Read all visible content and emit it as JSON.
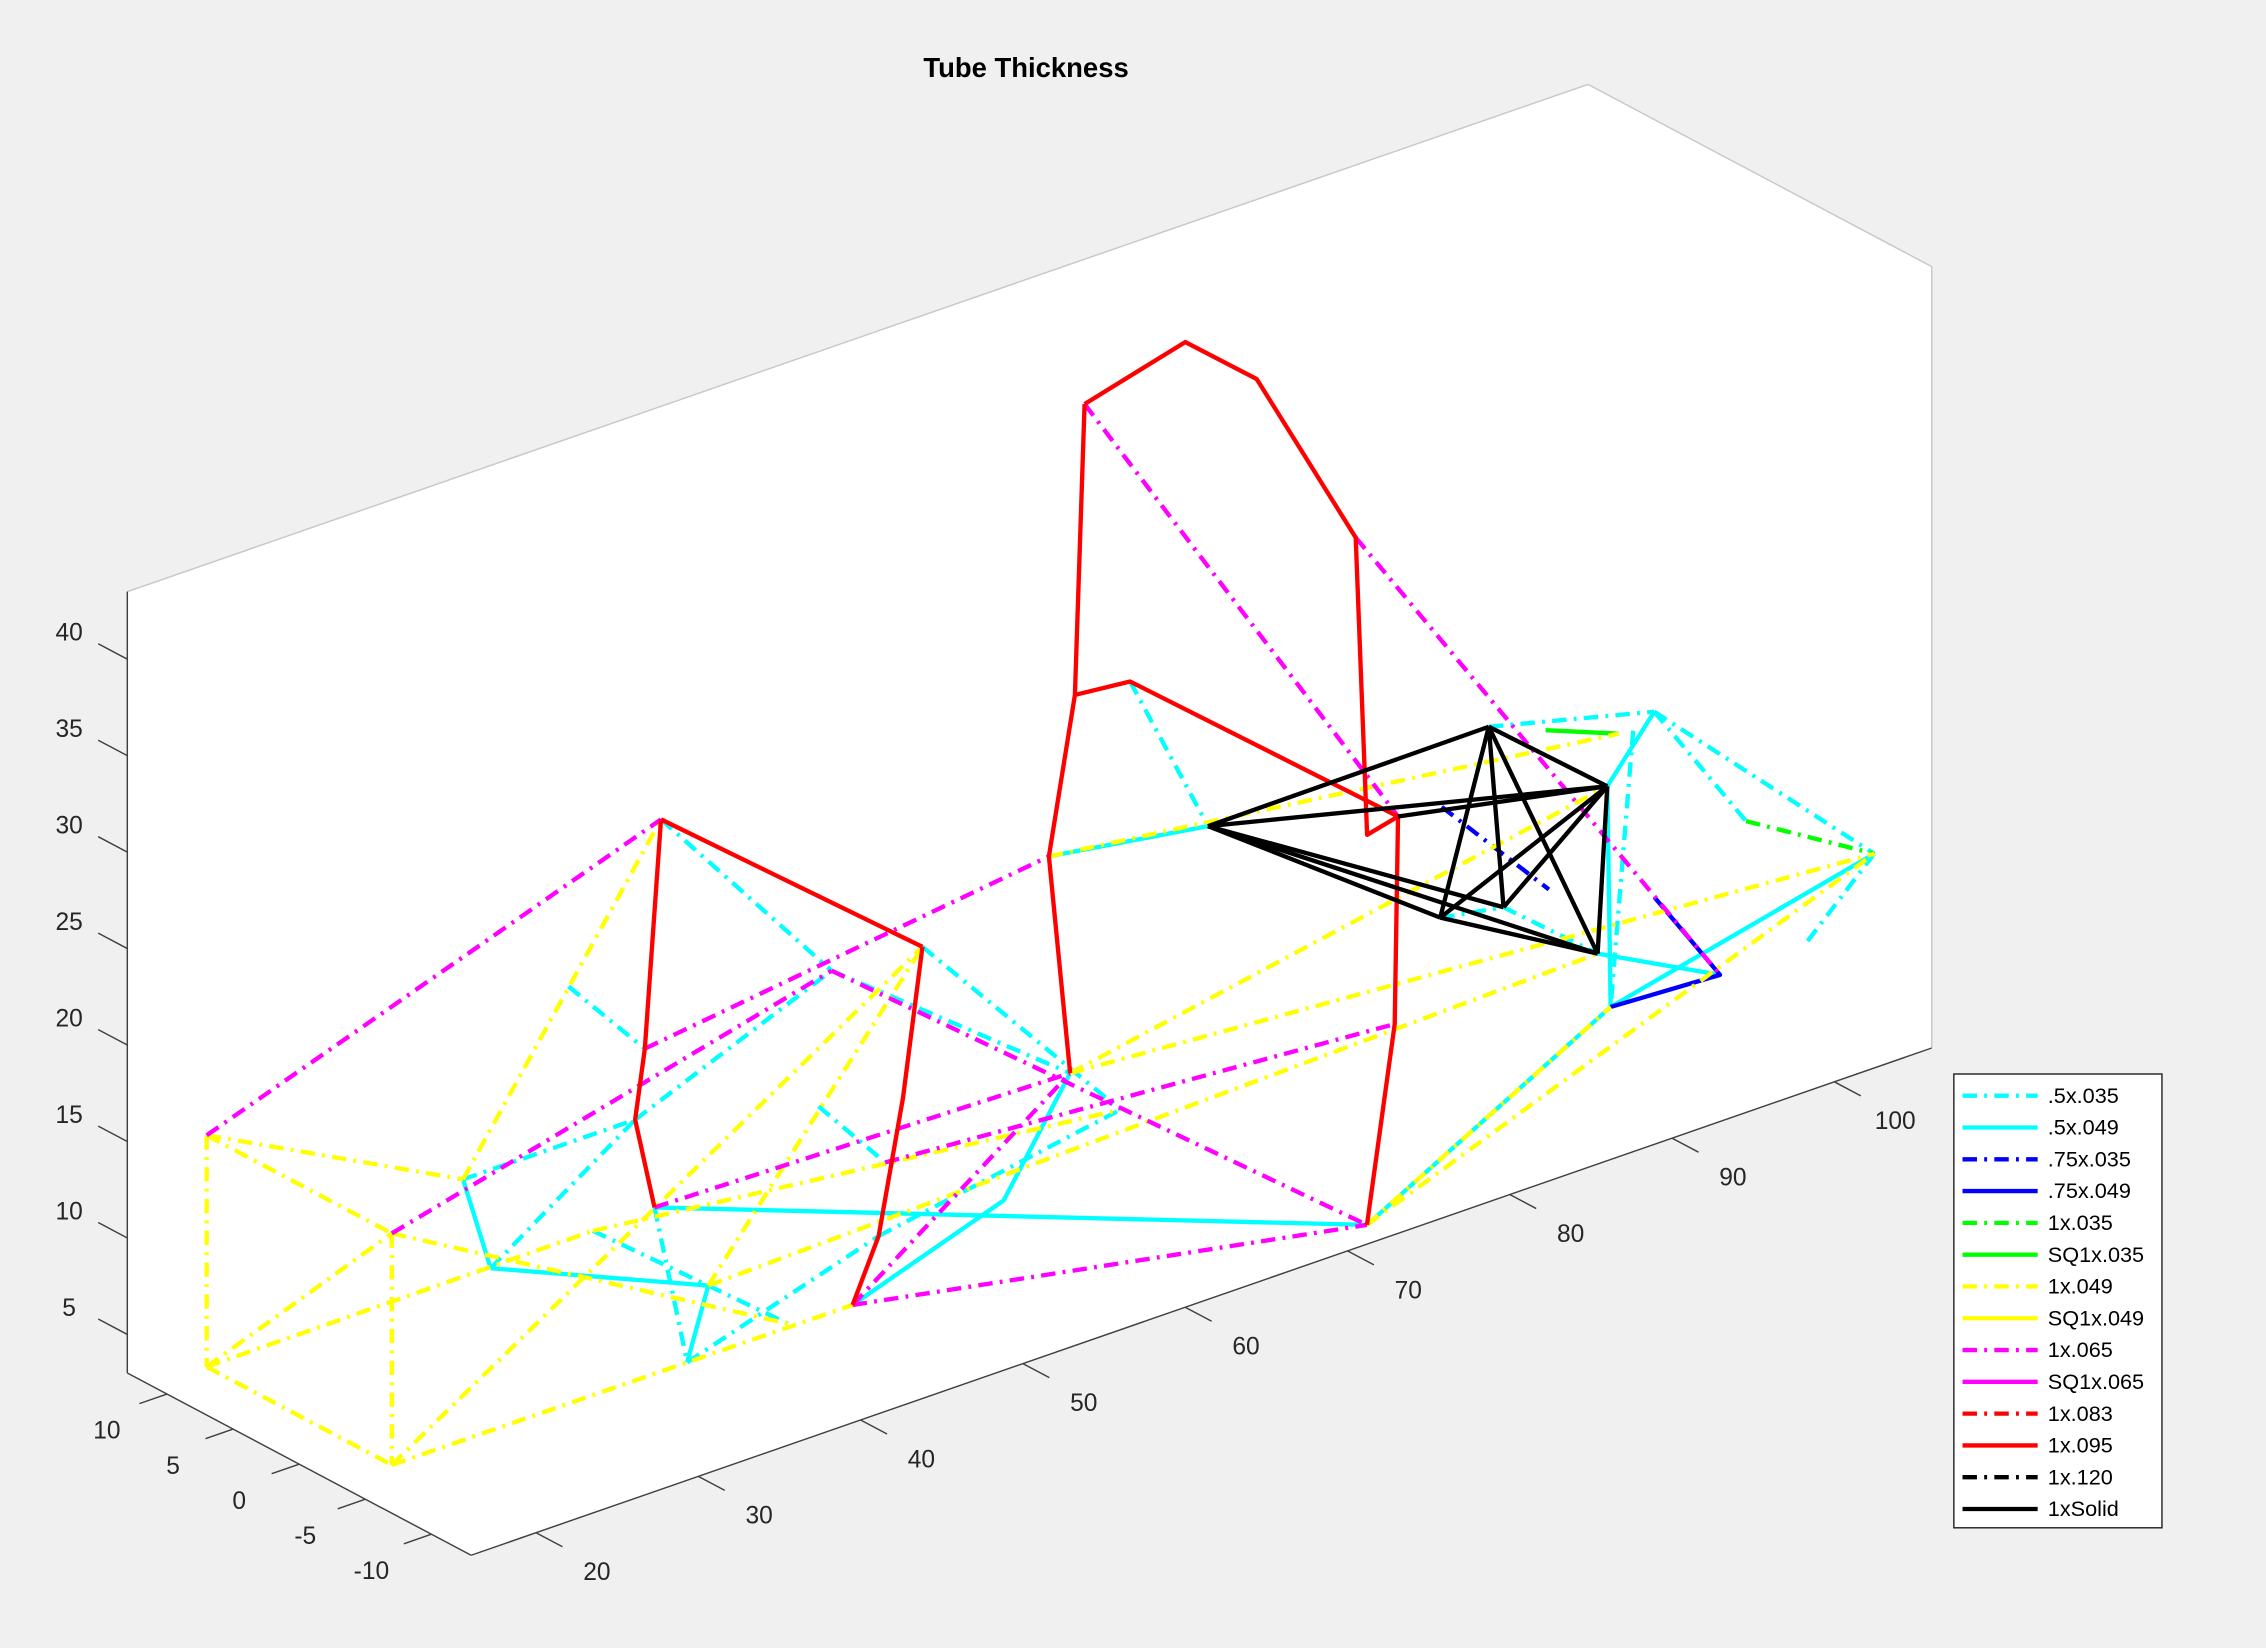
{
  "chart_data": {
    "type": "line3d",
    "title": "Tube Thickness",
    "xlim": [
      16,
      106
    ],
    "ylim": [
      -13,
      13
    ],
    "zlim": [
      3,
      43.5
    ],
    "xticks": [
      20,
      30,
      40,
      50,
      60,
      70,
      80,
      90,
      100
    ],
    "yticks": [
      -10,
      -5,
      0,
      5,
      10
    ],
    "zticks": [
      5,
      10,
      15,
      20,
      25,
      30,
      35,
      40
    ],
    "series": [
      {
        "name": ".5x.035",
        "color": "#00ffff",
        "linestyle": "-.",
        "x": [
          44,
          43.1,
          null,
          43.1,
          57.8,
          null,
          38.3,
          43,
          null,
          31.8,
          42.4,
          null,
          33.5,
          42.4,
          null,
          42.4,
          43.1,
          null,
          48.7,
          60.9,
          null,
          42.3,
          46.4,
          null,
          43.6,
          34.2,
          null,
          35.5,
          40.4,
          null,
          34.2,
          46,
          null,
          46,
          60.9,
          null,
          72.9,
          77.7,
          null,
          95,
          105.2,
          null,
          105.2,
          104.9,
          null,
          105.2,
          97,
          null,
          103.9,
          91.1,
          null,
          104.9,
          100.7,
          null,
          80.6,
          84.5,
          90.3,
          null,
          95,
          80.6,
          null,
          39.8,
          35.5
        ],
        "y": [
          7,
          -7,
          null,
          -7,
          -7,
          null,
          7,
          7,
          null,
          7,
          7,
          null,
          7,
          7,
          null,
          7,
          -7,
          null,
          -7,
          -7,
          null,
          -7,
          -7,
          null,
          7,
          -7,
          null,
          -7,
          -7,
          null,
          -7,
          -7,
          null,
          -7,
          -7,
          null,
          7,
          7,
          null,
          7,
          7,
          null,
          7,
          -10,
          null,
          7,
          -10,
          null,
          7,
          -7,
          null,
          -10,
          -10,
          null,
          -7,
          -7,
          -7,
          null,
          7,
          -7,
          null,
          7,
          -7
        ],
        "z": [
          25.7,
          23.2,
          null,
          23.2,
          13.6,
          null,
          18.7,
          14.1,
          null,
          10.6,
          10.6,
          null,
          5.5,
          10.6,
          null,
          10.6,
          23.2,
          null,
          22.8,
          10.8,
          null,
          16.4,
          12.3,
          null,
          5.7,
          5.5,
          null,
          9.1,
          5.7,
          null,
          5.5,
          8.6,
          null,
          8.6,
          10.8,
          null,
          24.4,
          15.5,
          null,
          15.6,
          13.4,
          null,
          13.4,
          12.3,
          null,
          13.4,
          16.3,
          null,
          12.8,
          7.3,
          null,
          12.3,
          8.9,
          null,
          15,
          14.4,
          10.3,
          null,
          15.6,
          15,
          null,
          5.6,
          9.1
        ]
      },
      {
        "name": ".5x.049",
        "color": "#00ffff",
        "linestyle": "-",
        "x": [
          67.9,
          77.7,
          null,
          43.6,
          71.2,
          null,
          33.5,
          35.5,
          null,
          31.8,
          33.5,
          null,
          34.2,
          35.5,
          null,
          57.8,
          53.7,
          44.4,
          null,
          104.9,
          91.1,
          71.2,
          null,
          90.9,
          91.1,
          null,
          105.2,
          90.9,
          null,
          90.3,
          95.4
        ],
        "y": [
          7,
          7,
          null,
          7,
          -13,
          null,
          7,
          -7,
          null,
          7,
          7,
          null,
          -7,
          -7,
          null,
          -7,
          -7,
          -7,
          null,
          -10,
          -7,
          -13,
          null,
          -7,
          -7,
          null,
          7,
          -7,
          null,
          -7,
          -10
        ],
        "z": [
          16.8,
          15.5,
          null,
          5.7,
          4,
          null,
          5.5,
          9.1,
          null,
          10.6,
          5.5,
          null,
          5.5,
          9.1,
          null,
          13.6,
          8.2,
          5.5,
          null,
          12.3,
          7.3,
          4,
          null,
          18.8,
          7.3,
          null,
          13.4,
          18.8,
          null,
          10.3,
          8.8
        ]
      },
      {
        "name": ".75x.035",
        "color": "#0000ff",
        "linestyle": "-.",
        "x": [
          92.1,
          87.3
        ],
        "y": [
          7,
          -7
        ],
        "z": [
          12.3,
          14.5
        ]
      },
      {
        "name": ".75x.049",
        "color": "#0000ff",
        "linestyle": "-",
        "x": [
          91.1,
          95.4,
          93.8
        ],
        "y": [
          -7,
          -10,
          -7
        ],
        "z": [
          7.3,
          8.8,
          12.2
        ]
      },
      {
        "name": "1x.035",
        "color": "#00ff00",
        "linestyle": "-.",
        "x": [
          97,
          104.9
        ],
        "y": [
          -10,
          -10
        ],
        "z": [
          16.3,
          12.3
        ]
      },
      {
        "name": "SQ1x.035",
        "color": "#00ff00",
        "linestyle": "-",
        "x": [
          98.5,
          103
        ],
        "y": [
          7,
          7
        ],
        "z": [
          14.4,
          12.9
        ]
      },
      {
        "name": "1x.049",
        "color": "#ffff00",
        "linestyle": "-.",
        "x": [
          16,
          16,
          null,
          16,
          16,
          null,
          16,
          16,
          null,
          16,
          16,
          null,
          16,
          31.8,
          null,
          16,
          16,
          null,
          16,
          39.8,
          null,
          16,
          44.4,
          null,
          16,
          48.7,
          null,
          16,
          40.4,
          null,
          31.8,
          44,
          null,
          35.5,
          48.7,
          null,
          39.8,
          60.9,
          null,
          35.5,
          90.3,
          null,
          57.8,
          104.9,
          null,
          71.2,
          104.9,
          null,
          71.2,
          91.1,
          null,
          67.9,
          103,
          null,
          57.8,
          90.9
        ],
        "y": [
          7,
          7,
          null,
          -7,
          -7,
          null,
          7,
          -7,
          null,
          7,
          -7,
          null,
          7,
          7,
          null,
          7,
          -7,
          null,
          7,
          7,
          null,
          -7,
          -7,
          null,
          -7,
          -7,
          null,
          -7,
          -7,
          null,
          7,
          7,
          null,
          -7,
          -7,
          null,
          7,
          -7,
          null,
          -7,
          -7,
          null,
          -7,
          -10,
          null,
          -13,
          -10,
          null,
          -13,
          -7,
          null,
          7,
          7,
          null,
          -7,
          -7
        ],
        "z": [
          17.5,
          5.5,
          null,
          17.5,
          5.5,
          null,
          17.5,
          17.5,
          null,
          5.5,
          5.5,
          null,
          17.5,
          10.6,
          null,
          5.5,
          17.5,
          null,
          5.5,
          5.6,
          null,
          5.5,
          5.5,
          null,
          5.5,
          22.8,
          null,
          17.5,
          5.7,
          null,
          10.6,
          25.7,
          null,
          9.1,
          22.8,
          null,
          5.6,
          10.8,
          null,
          9.1,
          10.3,
          null,
          13.6,
          12.3,
          null,
          4,
          12.3,
          null,
          4,
          7.3,
          null,
          16.8,
          12.9,
          null,
          13.6,
          18.8
        ]
      },
      {
        "name": "SQ1x.049",
        "color": "#ffff00",
        "linestyle": "-",
        "x": [],
        "y": [],
        "z": []
      },
      {
        "name": "1x.065",
        "color": "#ff00ff",
        "linestyle": "-.",
        "x": [
          16,
          44,
          null,
          16,
          43.1,
          null,
          43.1,
          71.2,
          null,
          43,
          67.9,
          null,
          43.6,
          57.8,
          null,
          46.4,
          77.8,
          null,
          44.4,
          71.2,
          null,
          44.4,
          57.8,
          null,
          70.1,
          78,
          null,
          86.8,
          95.4
        ],
        "y": [
          7,
          7,
          null,
          -7,
          -7,
          null,
          -7,
          -13,
          null,
          7,
          7,
          null,
          7,
          -7,
          null,
          -7,
          -7,
          null,
          -7,
          -13,
          null,
          -7,
          -7,
          null,
          7,
          -7,
          null,
          7,
          -10
        ],
        "z": [
          17.5,
          25.7,
          null,
          17.5,
          23.2,
          null,
          23.2,
          4,
          null,
          14.1,
          16.8,
          null,
          5.7,
          13.6,
          null,
          12.3,
          10.3,
          null,
          5.5,
          4,
          null,
          5.5,
          13.6,
          null,
          39.6,
          21,
          null,
          27.8,
          8.8
        ]
      },
      {
        "name": "SQ1x.065",
        "color": "#ff00ff",
        "linestyle": "-",
        "x": [],
        "y": [],
        "z": []
      },
      {
        "name": "1x.083",
        "color": "#ff0000",
        "linestyle": "-.",
        "x": [],
        "y": [],
        "z": []
      },
      {
        "name": "1x.095",
        "color": "#ff0000",
        "linestyle": "-",
        "x": [
          44,
          48.7,
          null,
          44,
          43,
          42.4,
          43.6,
          null,
          48.7,
          47.5,
          46,
          44.4,
          null,
          70.1,
          76.3,
          80.7,
          86.8,
          76.1,
          78,
          77.8,
          71.2,
          null,
          70.1,
          69.5,
          67.9,
          57.8,
          null,
          69.5,
          72.9,
          78
        ],
        "y": [
          7,
          -7,
          null,
          7,
          7,
          7,
          7,
          null,
          -7,
          -7,
          -7,
          -7,
          null,
          7,
          7,
          7,
          7,
          -7,
          -7,
          -7,
          -13,
          null,
          7,
          7,
          7,
          -7,
          null,
          7,
          7,
          -7
        ],
        "z": [
          25.7,
          22.8,
          null,
          25.7,
          14.1,
          10.6,
          5.7,
          null,
          22.8,
          15.3,
          8.6,
          5.5,
          null,
          39.6,
          41,
          37.8,
          27.8,
          20.6,
          21,
          10.3,
          4,
          null,
          39.6,
          24.7,
          16.8,
          13.6,
          null,
          24.7,
          24.4,
          21
        ]
      },
      {
        "name": "1x.120",
        "color": "#000000",
        "linestyle": "-.",
        "x": [],
        "y": [],
        "z": []
      },
      {
        "name": "1xSolid",
        "color": "#000000",
        "linestyle": "-",
        "x": [
          77.7,
          95,
          null,
          77.7,
          90.9,
          null,
          77.7,
          80.6,
          null,
          77.7,
          90.3,
          null,
          77.7,
          84.5,
          null,
          95,
          90.9,
          null,
          95,
          80.6,
          null,
          95,
          84.5,
          null,
          95,
          90.3,
          null,
          90.9,
          80.6,
          null,
          90.9,
          84.5,
          null,
          90.9,
          90.3,
          null,
          80.6,
          90.3,
          null,
          78,
          90.9
        ],
        "y": [
          7,
          7,
          null,
          7,
          -7,
          null,
          7,
          -7,
          null,
          7,
          -7,
          null,
          7,
          -7,
          null,
          7,
          -7,
          null,
          7,
          -7,
          null,
          7,
          -7,
          null,
          7,
          -7,
          null,
          -7,
          -7,
          null,
          -7,
          -7,
          null,
          -7,
          -7,
          null,
          -7,
          -7,
          null,
          -7,
          -7
        ],
        "z": [
          15.5,
          15.6,
          null,
          15.5,
          18.8,
          null,
          15.5,
          15,
          null,
          15.5,
          10.3,
          null,
          15.5,
          14.4,
          null,
          15.6,
          18.8,
          null,
          15.6,
          15,
          null,
          15.6,
          14.4,
          null,
          15.6,
          10.3,
          null,
          18.8,
          15,
          null,
          18.8,
          14.4,
          null,
          18.8,
          10.3,
          null,
          15,
          10.3,
          null,
          21,
          18.8
        ]
      }
    ]
  }
}
